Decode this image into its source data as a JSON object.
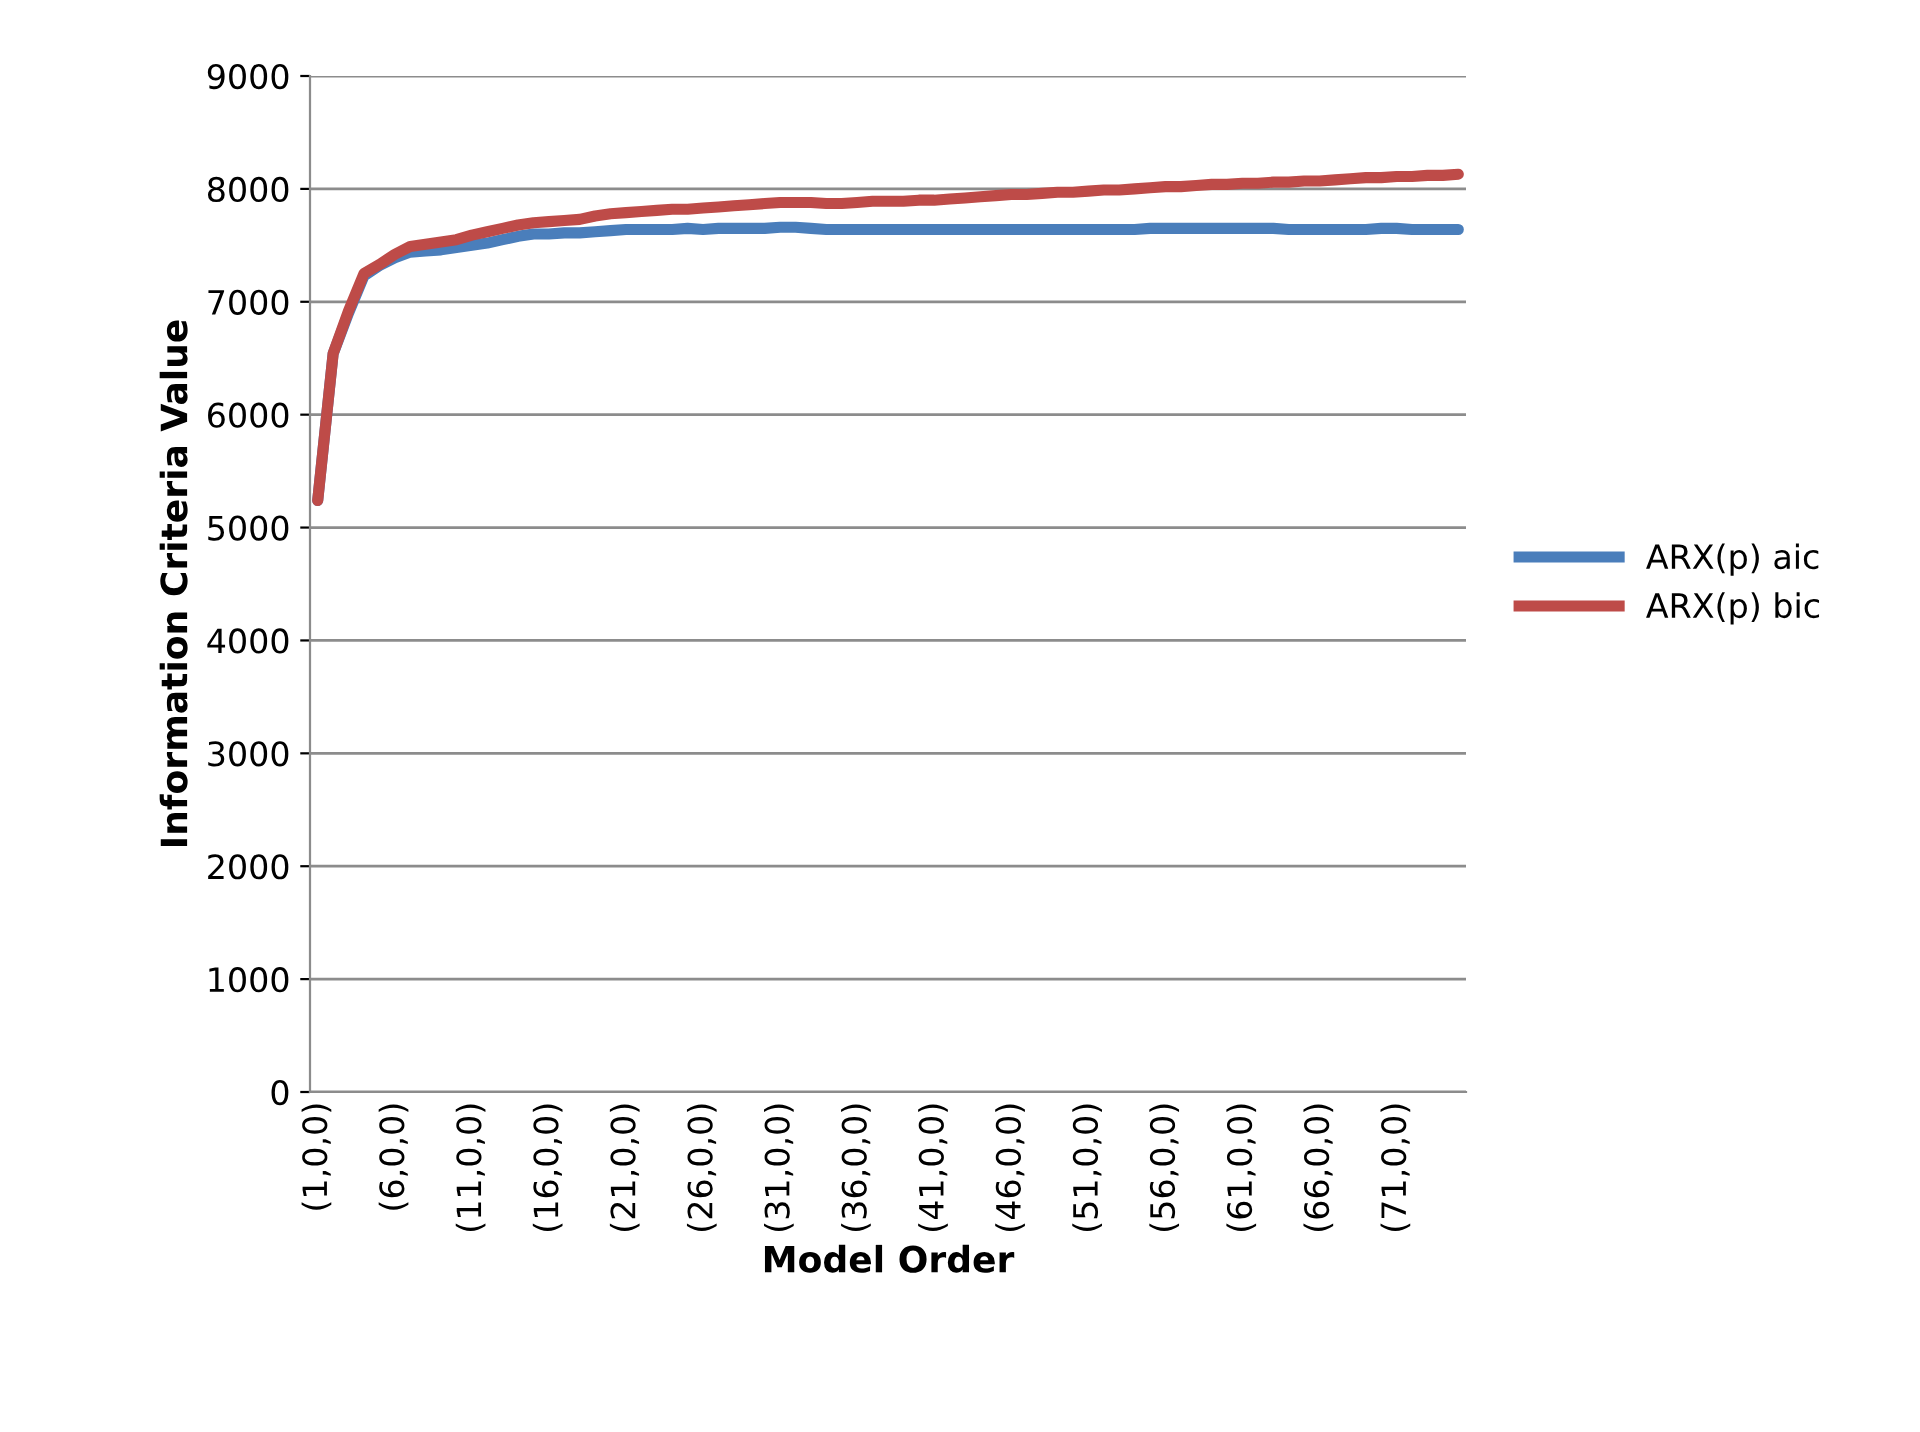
{
  "chart_data": {
    "type": "line",
    "xlabel": "Model Order",
    "ylabel": "Information Criteria Value",
    "categories": [
      "(1,0,0)",
      null,
      null,
      null,
      null,
      "(6,0,0)",
      null,
      null,
      null,
      null,
      "(11,0,0)",
      null,
      null,
      null,
      null,
      "(16,0,0)",
      null,
      null,
      null,
      null,
      "(21,0,0)",
      null,
      null,
      null,
      null,
      "(26,0,0)",
      null,
      null,
      null,
      null,
      "(31,0,0)",
      null,
      null,
      null,
      null,
      "(36,0,0)",
      null,
      null,
      null,
      null,
      "(41,0,0)",
      null,
      null,
      null,
      null,
      "(46,0,0)",
      null,
      null,
      null,
      null,
      "(51,0,0)",
      null,
      null,
      null,
      null,
      "(56,0,0)",
      null,
      null,
      null,
      null,
      "(61,0,0)",
      null,
      null,
      null,
      null,
      "(66,0,0)",
      null,
      null,
      null,
      null,
      "(71,0,0)",
      null,
      null,
      null,
      null
    ],
    "series": [
      {
        "name": "ARX(p) aic",
        "color": "#4a7ebb",
        "values": [
          5240,
          6540,
          6900,
          7230,
          7320,
          7390,
          7440,
          7450,
          7460,
          7480,
          7500,
          7520,
          7550,
          7580,
          7600,
          7600,
          7610,
          7610,
          7620,
          7630,
          7640,
          7640,
          7640,
          7640,
          7650,
          7640,
          7650,
          7650,
          7650,
          7650,
          7660,
          7660,
          7650,
          7640,
          7640,
          7640,
          7640,
          7640,
          7640,
          7640,
          7640,
          7640,
          7640,
          7640,
          7640,
          7640,
          7640,
          7640,
          7640,
          7640,
          7640,
          7640,
          7640,
          7640,
          7650,
          7650,
          7650,
          7650,
          7650,
          7650,
          7650,
          7650,
          7650,
          7640,
          7640,
          7640,
          7640,
          7640,
          7640,
          7650,
          7650,
          7640,
          7640,
          7640,
          7640
        ]
      },
      {
        "name": "ARX(p) bic",
        "color": "#be4b48",
        "values": [
          5240,
          6540,
          6920,
          7250,
          7330,
          7420,
          7490,
          7510,
          7530,
          7550,
          7590,
          7620,
          7650,
          7680,
          7700,
          7710,
          7720,
          7730,
          7760,
          7780,
          7790,
          7800,
          7810,
          7820,
          7820,
          7830,
          7840,
          7850,
          7860,
          7870,
          7880,
          7880,
          7880,
          7870,
          7870,
          7880,
          7890,
          7890,
          7890,
          7900,
          7900,
          7910,
          7920,
          7930,
          7940,
          7950,
          7950,
          7960,
          7970,
          7970,
          7980,
          7990,
          7990,
          8000,
          8010,
          8020,
          8020,
          8030,
          8040,
          8040,
          8050,
          8050,
          8060,
          8060,
          8070,
          8070,
          8080,
          8090,
          8100,
          8100,
          8110,
          8110,
          8120,
          8120,
          8130
        ]
      }
    ],
    "ylim": [
      0,
      9000
    ],
    "yticks": [
      0,
      1000,
      2000,
      3000,
      4000,
      5000,
      6000,
      7000,
      8000,
      9000
    ],
    "grid": "y",
    "legend": "right",
    "marker": "none",
    "line_style": "solid"
  }
}
